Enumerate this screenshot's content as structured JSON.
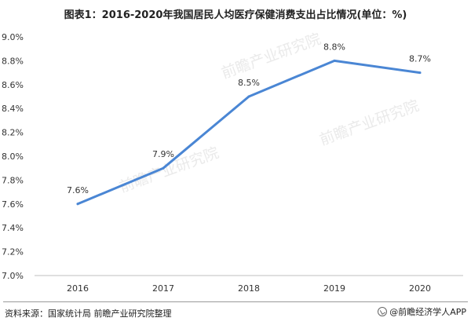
{
  "chart_data": {
    "type": "line",
    "title": "图表1：2016-2020年我国居民人均医疗保健消费支出占比情况(单位：%)",
    "categories": [
      "2016",
      "2017",
      "2018",
      "2019",
      "2020"
    ],
    "values": [
      7.6,
      7.9,
      8.5,
      8.8,
      8.7
    ],
    "data_labels": [
      "7.6%",
      "7.9%",
      "8.5%",
      "8.8%",
      "8.7%"
    ],
    "y_ticks": [
      "7.0%",
      "7.2%",
      "7.4%",
      "7.6%",
      "7.8%",
      "8.0%",
      "8.2%",
      "8.4%",
      "8.6%",
      "8.8%",
      "9.0%"
    ],
    "ylim": [
      7.0,
      9.0
    ],
    "grid": false,
    "colors": {
      "line": "#4a86d4",
      "axis": "#bfbfbf",
      "text": "#333333"
    }
  },
  "footer": {
    "source": "资料来源：国家统计局 前瞻产业研究院整理",
    "brand": "@前瞻经济学人APP",
    "brand_icon": "brand-logo-icon"
  },
  "watermarks": [
    "前瞻产业研究院",
    "前瞻产业研究院",
    "前瞻产业研究院"
  ]
}
